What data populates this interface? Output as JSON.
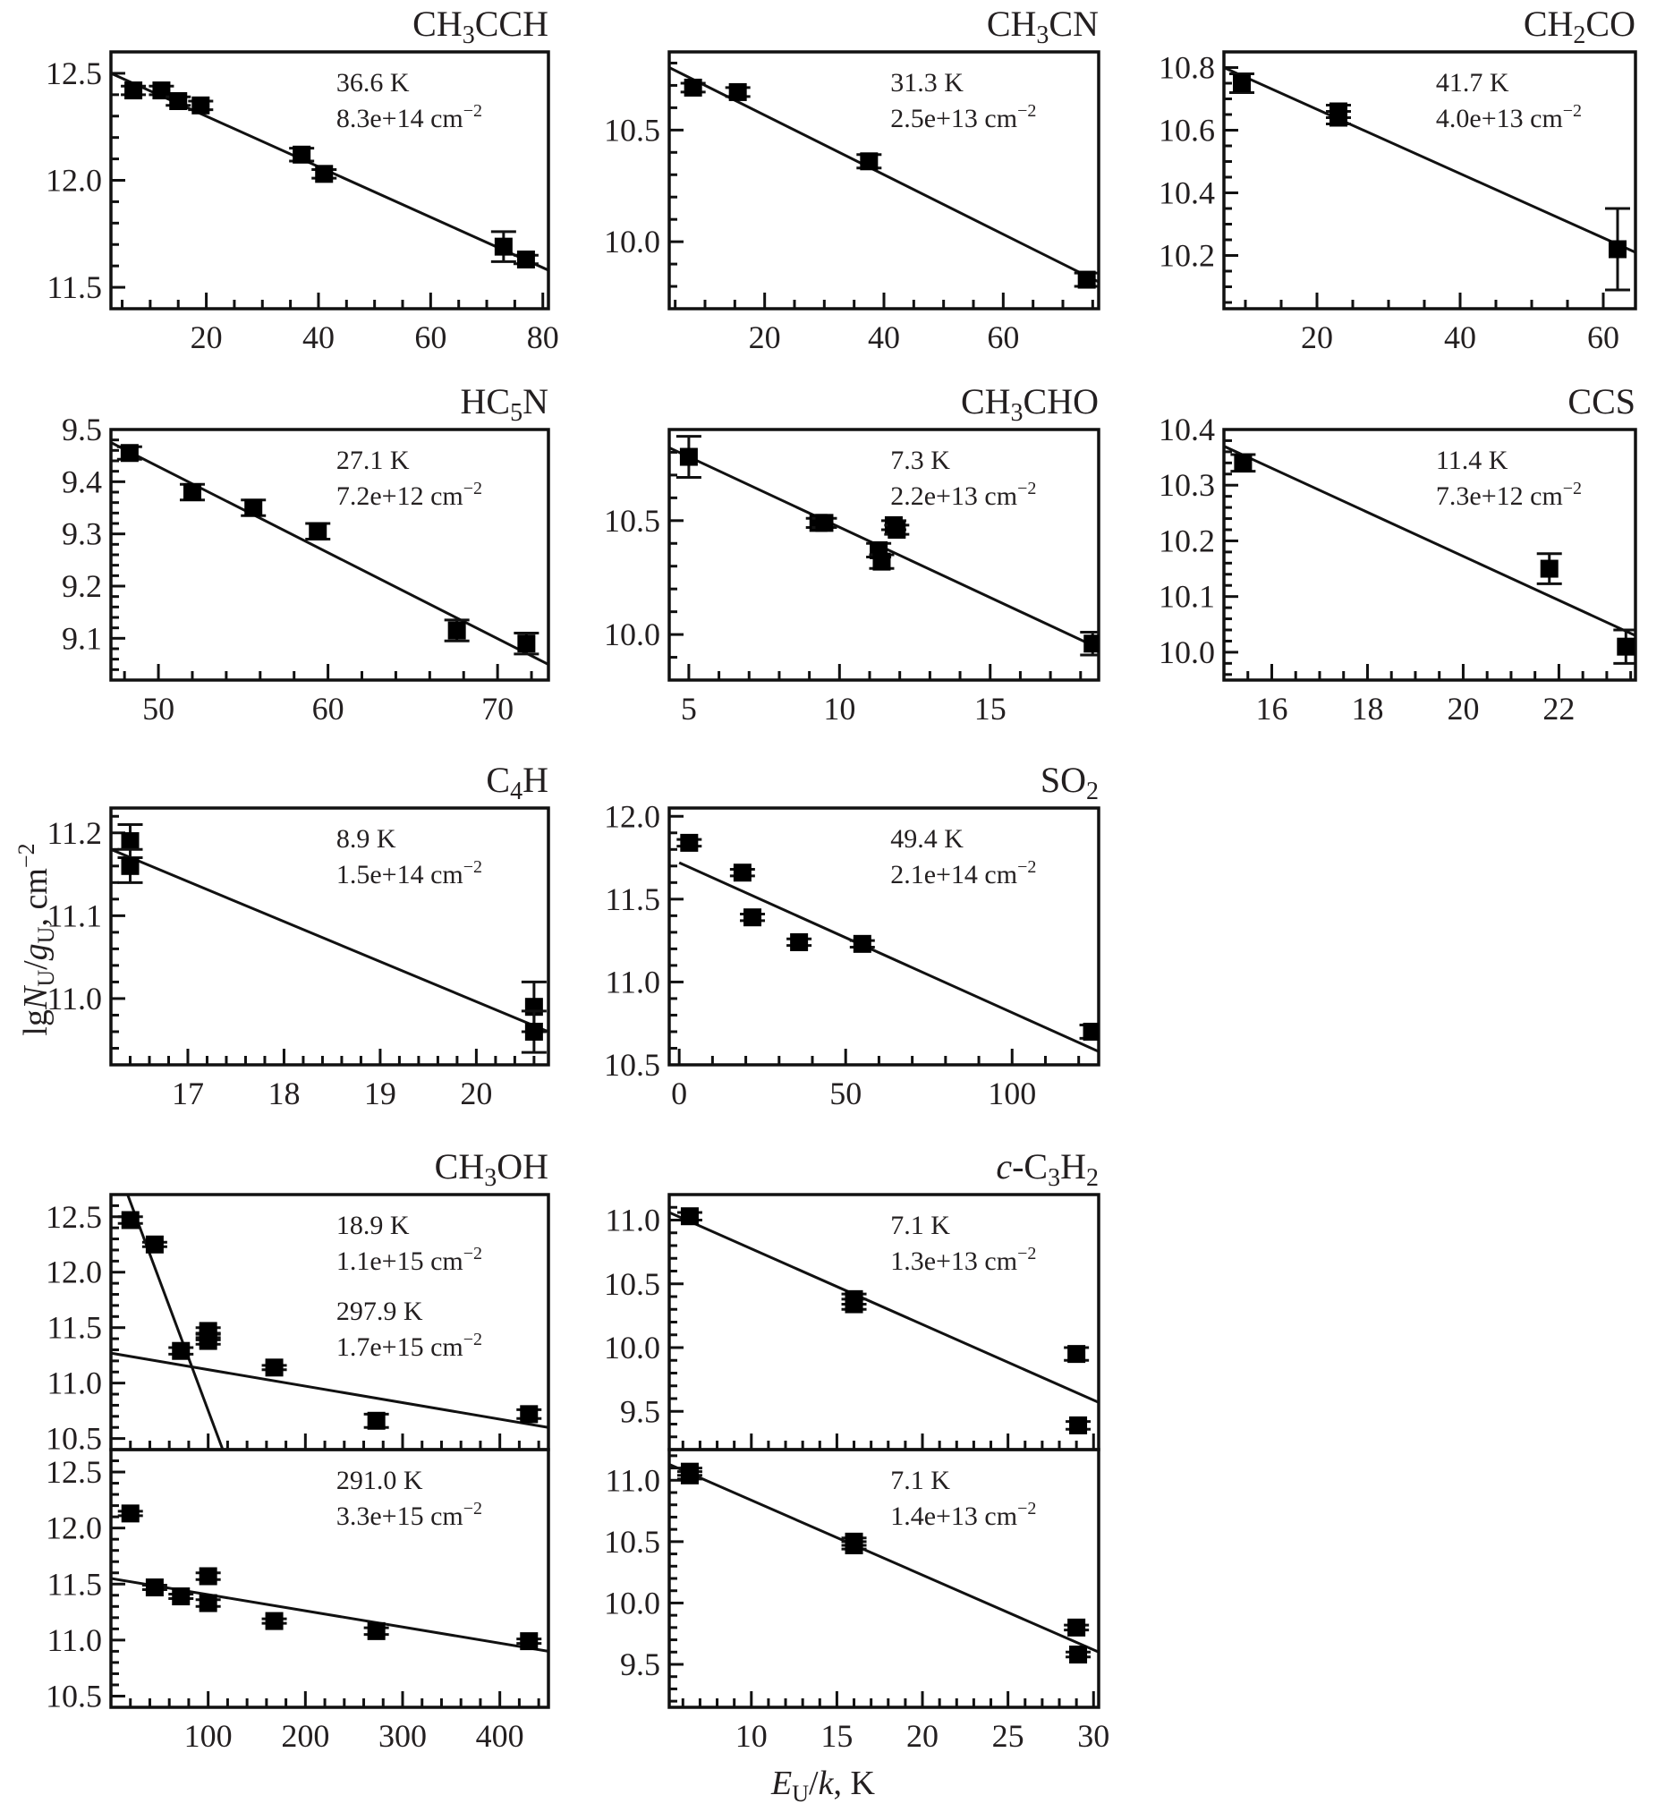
{
  "figure": {
    "ylabel": "lgN_U/g_U, cm^-2",
    "ylabel_parts": {
      "pre": "lg",
      "N": "N",
      "sub1": "U",
      "slash": "/",
      "g": "g",
      "sub2": "U",
      "post": ", cm",
      "sup": "−2"
    },
    "xlabel_parts": {
      "E": "E",
      "sub": "U",
      "slash": "/",
      "k": "k",
      "post": ", K"
    }
  },
  "chart_data": [
    {
      "type": "scatter",
      "id": "ch3cch",
      "title": {
        "base": "CH",
        "sub": "3",
        "rest": "CCH"
      },
      "annotations": [
        [
          "36.6 K",
          "8.3e+14 cm",
          "−2"
        ]
      ],
      "xlim": [
        3,
        81
      ],
      "ylim": [
        11.4,
        12.6
      ],
      "xticks": [
        20,
        40,
        60,
        80
      ],
      "xminor": 5,
      "yticks": [
        11.5,
        12.0,
        12.5
      ],
      "yminor": 0.1,
      "ytick_decimals": 1,
      "points": [
        [
          7,
          12.42,
          0.02
        ],
        [
          12,
          12.42,
          0.02
        ],
        [
          15,
          12.37,
          0.02
        ],
        [
          19,
          12.35,
          0.02
        ],
        [
          37,
          12.12,
          0.03
        ],
        [
          41,
          12.03,
          0.02
        ],
        [
          73,
          11.69,
          0.07
        ],
        [
          77,
          11.63,
          0.02
        ]
      ],
      "fits": [
        [
          [
            3,
            12.5
          ],
          [
            81,
            11.58
          ]
        ]
      ]
    },
    {
      "type": "scatter",
      "id": "ch3cn",
      "title": {
        "base": "CH",
        "sub": "3",
        "rest": "CN"
      },
      "annotations": [
        [
          "31.3 K",
          "2.5e+13 cm",
          "−2"
        ]
      ],
      "xlim": [
        4,
        76
      ],
      "ylim": [
        9.7,
        10.85
      ],
      "xticks": [
        20,
        40,
        60
      ],
      "xminor": 5,
      "yticks": [
        10.0,
        10.5
      ],
      "yminor": 0.1,
      "ytick_decimals": 1,
      "points": [
        [
          8,
          10.69,
          0.02
        ],
        [
          15.5,
          10.67,
          0.02
        ],
        [
          37.5,
          10.36,
          0.03
        ],
        [
          74,
          9.83,
          0.03
        ]
      ],
      "fits": [
        [
          [
            4,
            10.78
          ],
          [
            76,
            9.82
          ]
        ]
      ]
    },
    {
      "type": "scatter",
      "id": "ch2co",
      "title": {
        "base": "CH",
        "sub": "2",
        "rest": "CO"
      },
      "annotations": [
        [
          "41.7 K",
          "4.0e+13 cm",
          "−2"
        ]
      ],
      "xlim": [
        7,
        64.5
      ],
      "ylim": [
        10.03,
        10.85
      ],
      "xticks": [
        20,
        40,
        60
      ],
      "xminor": 5,
      "yticks": [
        10.2,
        10.4,
        10.6,
        10.8
      ],
      "yminor": 0.05,
      "ytick_decimals": 1,
      "points": [
        [
          9.5,
          10.75,
          0.03
        ],
        [
          23,
          10.66,
          0.02
        ],
        [
          23,
          10.64,
          0.02
        ],
        [
          62,
          10.22,
          0.13
        ]
      ],
      "fits": [
        [
          [
            7,
            10.8
          ],
          [
            64.5,
            10.21
          ]
        ]
      ]
    },
    {
      "type": "scatter",
      "id": "hc5n",
      "title": {
        "base": "HC",
        "sub": "5",
        "rest": "N"
      },
      "annotations": [
        [
          "27.1 K",
          "7.2e+12 cm",
          "−2"
        ]
      ],
      "xlim": [
        47.2,
        73
      ],
      "ylim": [
        9.02,
        9.5
      ],
      "xticks": [
        50,
        60,
        70
      ],
      "xminor": 2,
      "yticks": [
        9.1,
        9.2,
        9.3,
        9.4,
        9.5
      ],
      "yminor": 0.02,
      "ytick_decimals": 1,
      "points": [
        [
          48.3,
          9.455,
          0.012
        ],
        [
          52,
          9.38,
          0.015
        ],
        [
          55.6,
          9.35,
          0.015
        ],
        [
          59.4,
          9.305,
          0.015
        ],
        [
          67.6,
          9.115,
          0.02
        ],
        [
          71.7,
          9.09,
          0.02
        ]
      ],
      "fits": [
        [
          [
            47.2,
            9.475
          ],
          [
            73,
            9.05
          ]
        ]
      ]
    },
    {
      "type": "scatter",
      "id": "ch3cho",
      "title": {
        "base": "CH",
        "sub": "3",
        "rest": "CHO"
      },
      "annotations": [
        [
          "7.3 K",
          "2.2e+13 cm",
          "−2"
        ]
      ],
      "xlim": [
        4.35,
        18.6
      ],
      "ylim": [
        9.8,
        10.9
      ],
      "xticks": [
        5,
        10,
        15
      ],
      "xminor": 1,
      "yticks": [
        10.0,
        10.5
      ],
      "yminor": 0.1,
      "ytick_decimals": 1,
      "points": [
        [
          5,
          10.78,
          0.09
        ],
        [
          9.3,
          10.49,
          0.02
        ],
        [
          9.5,
          10.49,
          0.02
        ],
        [
          11.3,
          10.37,
          0.03
        ],
        [
          11.4,
          10.32,
          0.03
        ],
        [
          11.8,
          10.48,
          0.02
        ],
        [
          11.9,
          10.46,
          0.02
        ],
        [
          18.4,
          9.96,
          0.05
        ]
      ],
      "fits": [
        [
          [
            4.35,
            10.82
          ],
          [
            18.6,
            9.94
          ]
        ]
      ]
    },
    {
      "type": "scatter",
      "id": "ccs",
      "title": {
        "base": "CCS",
        "sub": "",
        "rest": ""
      },
      "annotations": [
        [
          "11.4 K",
          "7.3e+12 cm",
          "−2"
        ]
      ],
      "xlim": [
        15,
        23.6
      ],
      "ylim": [
        9.95,
        10.4
      ],
      "xticks": [
        16,
        18,
        20,
        22
      ],
      "xminor": 0.5,
      "yticks": [
        10.0,
        10.1,
        10.2,
        10.3,
        10.4
      ],
      "yminor": 0.02,
      "ytick_decimals": 1,
      "points": [
        [
          15.4,
          10.34,
          0.015
        ],
        [
          21.8,
          10.15,
          0.027
        ],
        [
          23.4,
          10.01,
          0.03
        ]
      ],
      "fits": [
        [
          [
            15,
            10.37
          ],
          [
            23.6,
            10.03
          ]
        ]
      ]
    },
    {
      "type": "scatter",
      "id": "c4h",
      "title": {
        "base": "C",
        "sub": "4",
        "rest": "H"
      },
      "annotations": [
        [
          "8.9 K",
          "1.5e+14 cm",
          "−2"
        ]
      ],
      "xlim": [
        16.2,
        20.75
      ],
      "ylim": [
        10.92,
        11.23
      ],
      "xticks": [
        17,
        18,
        19,
        20
      ],
      "xminor": 0.2,
      "yticks": [
        11.0,
        11.1,
        11.2
      ],
      "yminor": 0.02,
      "ytick_decimals": 1,
      "points": [
        [
          16.4,
          11.19,
          0.02
        ],
        [
          16.4,
          11.16,
          0.02
        ],
        [
          20.6,
          10.99,
          0.03
        ],
        [
          20.6,
          10.96,
          0.025
        ]
      ],
      "fits": [
        [
          [
            16.2,
            11.18
          ],
          [
            20.75,
            10.96
          ]
        ]
      ]
    },
    {
      "type": "scatter",
      "id": "so2",
      "title": {
        "base": "SO",
        "sub": "2",
        "rest": ""
      },
      "annotations": [
        [
          "49.4 K",
          "2.1e+14 cm",
          "−2"
        ]
      ],
      "xlim": [
        -3,
        126
      ],
      "ylim": [
        10.5,
        12.05
      ],
      "xticks": [
        0,
        50,
        100
      ],
      "xminor": 10,
      "yticks": [
        10.5,
        11.0,
        11.5,
        12.0
      ],
      "yminor": 0.1,
      "ytick_decimals": 1,
      "points": [
        [
          3,
          11.84,
          0.02
        ],
        [
          19,
          11.66,
          0.02
        ],
        [
          22,
          11.39,
          0.02
        ],
        [
          36,
          11.24,
          0.02
        ],
        [
          55,
          11.23,
          0.02
        ],
        [
          124,
          10.7,
          0.04
        ]
      ],
      "fits": [
        [
          [
            0,
            11.72
          ],
          [
            126,
            10.58
          ]
        ]
      ]
    },
    {
      "type": "scatter",
      "id": "ch3oh-top",
      "title": {
        "base": "CH",
        "sub": "3",
        "rest": "OH"
      },
      "annotations": [
        [
          "18.9 K",
          "1.1e+15 cm",
          "−2"
        ],
        [
          "297.9 K",
          "1.7e+15 cm",
          "−2"
        ]
      ],
      "xlim": [
        0,
        450
      ],
      "ylim": [
        10.4,
        12.7
      ],
      "xticks": [
        100,
        200,
        300,
        400
      ],
      "xminor": 20,
      "yticks": [
        10.5,
        11.0,
        11.5,
        12.0,
        12.5
      ],
      "yminor": 0.1,
      "ytick_decimals": 1,
      "points": [
        [
          20,
          12.47,
          0.03
        ],
        [
          45,
          12.25,
          0.02
        ],
        [
          72,
          11.29,
          0.03
        ],
        [
          100,
          11.47,
          0.03
        ],
        [
          100,
          11.42,
          0.03
        ],
        [
          100,
          11.38,
          0.03
        ],
        [
          168,
          11.14,
          0.02
        ],
        [
          273,
          10.66,
          0.06
        ],
        [
          430,
          10.72,
          0.04
        ]
      ],
      "fits": [
        [
          [
            15,
            12.75
          ],
          [
            115,
            10.4
          ]
        ],
        [
          [
            0,
            11.27
          ],
          [
            450,
            10.6
          ]
        ]
      ],
      "hide_xticklabels": true
    },
    {
      "type": "scatter",
      "id": "ch3oh-bottom",
      "title": {
        "base": "",
        "sub": "",
        "rest": ""
      },
      "annotations": [
        [
          "291.0 K",
          "3.3e+15 cm",
          "−2"
        ]
      ],
      "xlim": [
        0,
        450
      ],
      "ylim": [
        10.4,
        12.7
      ],
      "xticks": [
        100,
        200,
        300,
        400
      ],
      "xminor": 20,
      "yticks": [
        10.5,
        11.0,
        11.5,
        12.0,
        12.5
      ],
      "yminor": 0.1,
      "ytick_decimals": 1,
      "points": [
        [
          20,
          12.13,
          0.02
        ],
        [
          45,
          11.47,
          0.02
        ],
        [
          72,
          11.39,
          0.02
        ],
        [
          100,
          11.57,
          0.03
        ],
        [
          100,
          11.33,
          0.03
        ],
        [
          168,
          11.17,
          0.02
        ],
        [
          273,
          11.08,
          0.03
        ],
        [
          430,
          10.99,
          0.02
        ]
      ],
      "fits": [
        [
          [
            0,
            11.55
          ],
          [
            450,
            10.9
          ]
        ]
      ]
    },
    {
      "type": "scatter",
      "id": "c-c3h2-top",
      "title": {
        "base": "c",
        "sub": "3",
        "rest": "H",
        "prefix_italic": "c",
        "dash": "-C",
        "sub2": "2"
      },
      "annotations": [
        [
          "7.1 K",
          "1.3e+13 cm",
          "−2"
        ]
      ],
      "xlim": [
        5.2,
        30.3
      ],
      "ylim": [
        9.2,
        11.2
      ],
      "xticks": [
        10,
        15,
        20,
        25,
        30
      ],
      "xminor": 1,
      "yticks": [
        9.5,
        10.0,
        10.5,
        11.0
      ],
      "yminor": 0.1,
      "ytick_decimals": 1,
      "points": [
        [
          6.4,
          11.03,
          0.03
        ],
        [
          16,
          10.38,
          0.04
        ],
        [
          16,
          10.34,
          0.04
        ],
        [
          29,
          9.95,
          0.05
        ],
        [
          29.1,
          9.39,
          0.03
        ]
      ],
      "fits": [
        [
          [
            5.2,
            11.06
          ],
          [
            30.3,
            9.57
          ]
        ]
      ],
      "hide_xticklabels": true
    },
    {
      "type": "scatter",
      "id": "c-c3h2-bottom",
      "title": {
        "base": "",
        "sub": "",
        "rest": ""
      },
      "annotations": [
        [
          "7.1 K",
          "1.4e+13 cm",
          "−2"
        ]
      ],
      "xlim": [
        5.2,
        30.3
      ],
      "ylim": [
        9.15,
        11.25
      ],
      "xticks": [
        10,
        15,
        20,
        25,
        30
      ],
      "xminor": 1,
      "yticks": [
        9.5,
        10.0,
        10.5,
        11.0
      ],
      "yminor": 0.1,
      "ytick_decimals": 1,
      "points": [
        [
          6.4,
          11.07,
          0.03
        ],
        [
          6.4,
          11.04,
          0.03
        ],
        [
          16,
          10.5,
          0.03
        ],
        [
          16,
          10.47,
          0.03
        ],
        [
          29,
          9.8,
          0.02
        ],
        [
          29.1,
          9.58,
          0.02
        ]
      ],
      "fits": [
        [
          [
            5.2,
            11.13
          ],
          [
            30.3,
            9.6
          ]
        ]
      ]
    }
  ]
}
